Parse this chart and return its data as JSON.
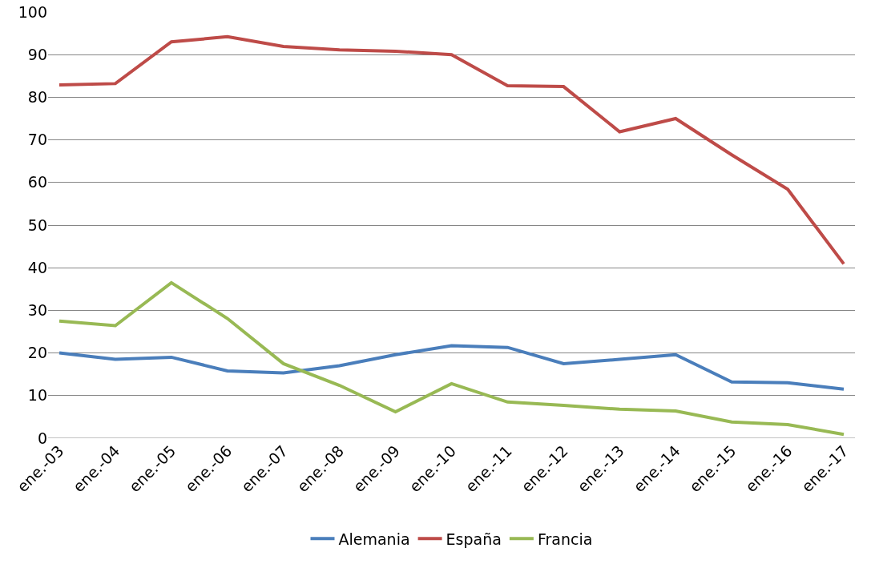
{
  "chart_data": {
    "type": "line",
    "categories": [
      "ene.-03",
      "ene.-04",
      "ene.-05",
      "ene.-06",
      "ene.-07",
      "ene.-08",
      "ene.-09",
      "ene.-10",
      "ene.-11",
      "ene.-12",
      "ene.-13",
      "ene.-14",
      "ene.-15",
      "ene.-16",
      "ene.-17"
    ],
    "series": [
      {
        "name": "Alemania",
        "color": "#4a7ebb",
        "values": [
          20.0,
          18.5,
          19.0,
          15.8,
          15.3,
          17.0,
          19.6,
          21.7,
          21.3,
          17.5,
          18.5,
          19.6,
          13.2,
          13.0,
          11.5
        ]
      },
      {
        "name": "España",
        "color": "#be4b48",
        "values": [
          82.9,
          83.2,
          93.0,
          94.2,
          91.9,
          91.1,
          90.8,
          90.0,
          82.7,
          82.5,
          71.9,
          75.0,
          66.5,
          58.4,
          40.9
        ]
      },
      {
        "name": "Francia",
        "color": "#98b954",
        "values": [
          27.5,
          26.4,
          36.5,
          28.1,
          17.5,
          12.4,
          6.2,
          12.8,
          8.5,
          7.7,
          6.8,
          6.4,
          3.8,
          3.2,
          0.9
        ]
      }
    ],
    "ylim": [
      0,
      100
    ],
    "yticks": [
      0,
      10,
      20,
      30,
      40,
      50,
      60,
      70,
      80,
      90,
      100
    ],
    "grid": "y",
    "legend": "bottom",
    "marker": "none",
    "line_style": "solid"
  }
}
